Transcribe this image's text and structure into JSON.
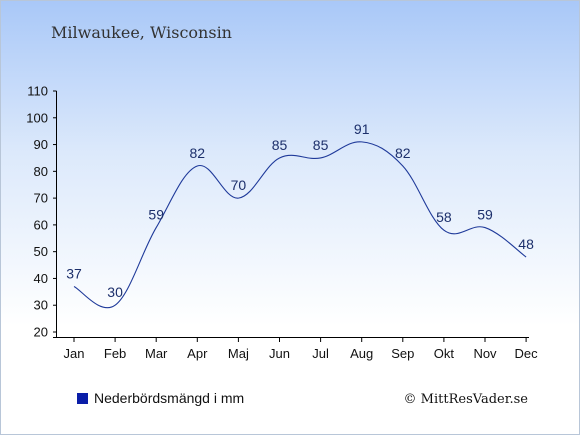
{
  "chart_data": {
    "type": "line",
    "title": "Milwaukee, Wisconsin",
    "categories": [
      "Jan",
      "Feb",
      "Mar",
      "Apr",
      "Maj",
      "Jun",
      "Jul",
      "Aug",
      "Sep",
      "Okt",
      "Nov",
      "Dec"
    ],
    "series": [
      {
        "name": "Nederbördsmängd i mm",
        "values": [
          37,
          30,
          59,
          82,
          70,
          85,
          85,
          91,
          82,
          58,
          59,
          48
        ]
      }
    ],
    "ylim": [
      20,
      110
    ],
    "yticks": [
      20,
      30,
      40,
      50,
      60,
      70,
      80,
      90,
      100,
      110
    ],
    "grid": false,
    "legend_position": "bottom-left",
    "line_color": "#1f3a9a",
    "legend_color": "#0a1ea8"
  },
  "credit": "© MittResVader.se"
}
